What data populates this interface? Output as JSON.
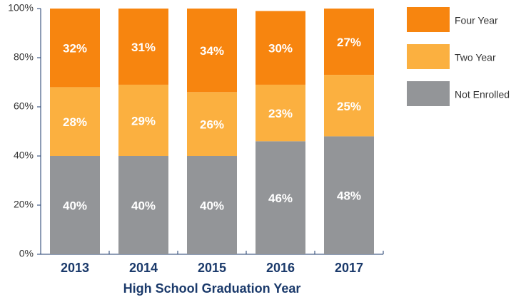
{
  "chart_data": {
    "type": "stacked_bar",
    "xlabel": "High School Graduation Year",
    "categories": [
      "2013",
      "2014",
      "2015",
      "2016",
      "2017"
    ],
    "series": [
      {
        "name": "Not Enrolled",
        "color": "#939598",
        "values": [
          40,
          40,
          40,
          46,
          48
        ],
        "value_labels": [
          "40%",
          "40%",
          "40%",
          "46%",
          "48%"
        ]
      },
      {
        "name": "Two Year",
        "color": "#fbb040",
        "values": [
          28,
          29,
          26,
          23,
          25
        ],
        "value_labels": [
          "28%",
          "29%",
          "26%",
          "23%",
          "25%"
        ]
      },
      {
        "name": "Four Year",
        "color": "#f7850f",
        "values": [
          32,
          31,
          34,
          30,
          27
        ],
        "value_labels": [
          "32%",
          "31%",
          "34%",
          "30%",
          "27%"
        ]
      }
    ],
    "ylim": [
      0,
      100
    ],
    "yticks": [
      {
        "value": 0,
        "label": "0%"
      },
      {
        "value": 20,
        "label": "20%"
      },
      {
        "value": 40,
        "label": "40%"
      },
      {
        "value": 60,
        "label": "60%"
      },
      {
        "value": 80,
        "label": "80%"
      },
      {
        "value": 100,
        "label": "100%"
      }
    ],
    "legend": "right"
  }
}
